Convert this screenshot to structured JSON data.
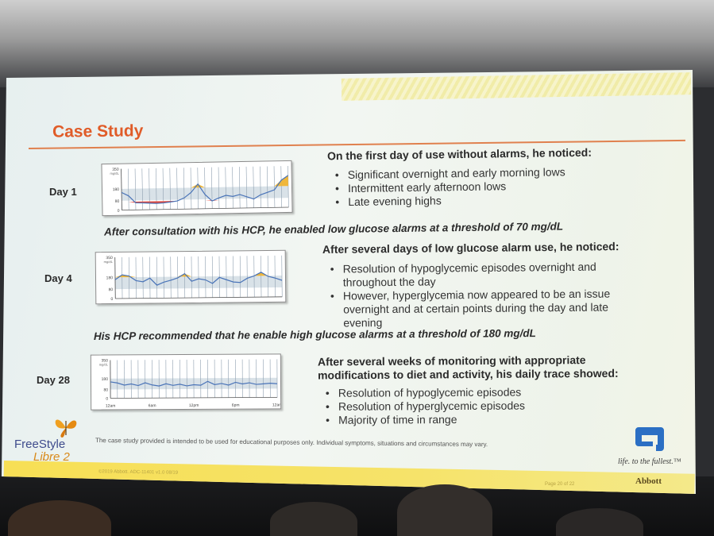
{
  "slide": {
    "title": "Case Study",
    "days": [
      {
        "label": "Day 1",
        "heading": "On the first day of use without alarms, he noticed:",
        "bullets": [
          "Significant overnight and early morning lows",
          "Intermittent early afternoon lows",
          "Late evening highs"
        ],
        "note": "After consultation with his HCP, he enabled low glucose alarms at a threshold of 70 mg/dL"
      },
      {
        "label": "Day 4",
        "heading": "After several days of low glucose alarm use, he noticed:",
        "bullets": [
          "Resolution of hypoglycemic episodes overnight and throughout the day",
          "However, hyperglycemia now appeared to be an issue overnight and at certain points during the day and late evening"
        ],
        "note": "His HCP recommended that he enable high glucose alarms at a threshold of 180 mg/dL"
      },
      {
        "label": "Day 28",
        "heading": "After several weeks of monitoring with appropriate modifications to diet and activity, his daily trace showed:",
        "bullets": [
          "Resolution of hypoglycemic episodes",
          "Resolution of hyperglycemic episodes",
          "Majority of time in range"
        ]
      }
    ],
    "chart_axes": {
      "y_ticks": [
        "350",
        "180",
        "80",
        "0"
      ],
      "unit": "mg/dL",
      "x_ticks": [
        "12am",
        "6am",
        "12pm",
        "6pm",
        "12am"
      ]
    },
    "disclaimer": "The case study provided is intended to be used for educational purposes only. Individual symptoms, situations and circumstances may vary.",
    "brand": {
      "line1": "FreeStyle",
      "line2": "Libre 2"
    },
    "tagline": "life. to the fullest.™",
    "company": "Abbott",
    "copyright": "©2019 Abbott. ADC-11401 v1.0 08/19",
    "page": "Page 20 of 22"
  },
  "chart_data": [
    {
      "type": "line",
      "title": "Day 1",
      "ylabel": "mg/dL",
      "ylim": [
        0,
        350
      ],
      "target_range": [
        80,
        180
      ],
      "x": [
        0,
        1,
        2,
        3,
        4,
        5,
        6,
        7,
        8,
        9,
        10,
        11,
        12,
        13,
        14,
        15,
        16,
        17,
        18,
        19,
        20,
        21,
        22,
        23,
        24
      ],
      "series": [
        {
          "values": [
            150,
            120,
            60,
            58,
            55,
            52,
            55,
            62,
            70,
            95,
            140,
            210,
            120,
            65,
            90,
            110,
            100,
            115,
            95,
            75,
            110,
            130,
            150,
            230,
            270
          ]
        }
      ]
    },
    {
      "type": "line",
      "title": "Day 4",
      "ylabel": "mg/dL",
      "ylim": [
        0,
        350
      ],
      "target_range": [
        80,
        180
      ],
      "x": [
        0,
        1,
        2,
        3,
        4,
        5,
        6,
        7,
        8,
        9,
        10,
        11,
        12,
        13,
        14,
        15,
        16,
        17,
        18,
        19,
        20,
        21,
        22,
        23,
        24
      ],
      "series": [
        {
          "values": [
            160,
            200,
            190,
            150,
            140,
            170,
            110,
            135,
            150,
            170,
            205,
            140,
            160,
            150,
            120,
            170,
            150,
            130,
            125,
            160,
            180,
            210,
            175,
            160,
            140
          ]
        }
      ]
    },
    {
      "type": "line",
      "title": "Day 28",
      "ylabel": "mg/dL",
      "ylim": [
        0,
        350
      ],
      "target_range": [
        80,
        180
      ],
      "x": [
        0,
        1,
        2,
        3,
        4,
        5,
        6,
        7,
        8,
        9,
        10,
        11,
        12,
        13,
        14,
        15,
        16,
        17,
        18,
        19,
        20,
        21,
        22,
        23,
        24
      ],
      "series": [
        {
          "values": [
            150,
            140,
            120,
            130,
            115,
            140,
            120,
            110,
            130,
            115,
            125,
            110,
            120,
            115,
            150,
            120,
            130,
            115,
            140,
            125,
            135,
            120,
            125,
            130,
            125
          ]
        }
      ]
    }
  ],
  "colors": {
    "title": "#e05c28",
    "trace": "#4a74b8",
    "low_fill": "#e0443a",
    "high_fill": "#f0b73a",
    "range_band": "#c9d6de"
  }
}
